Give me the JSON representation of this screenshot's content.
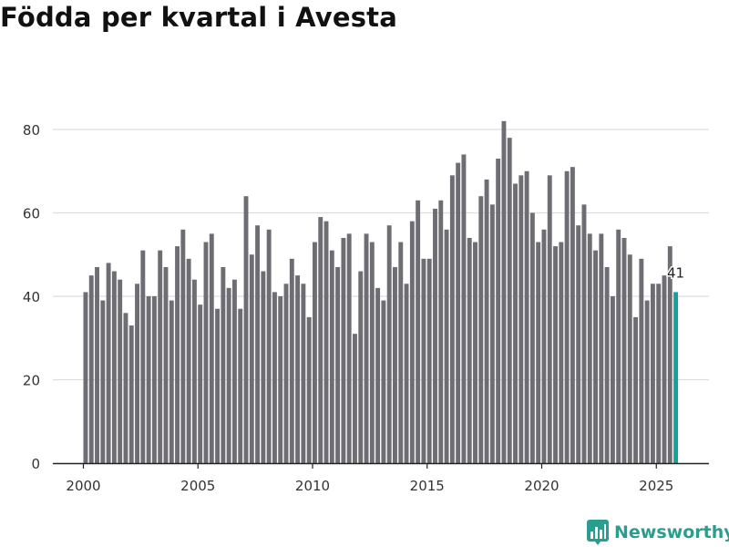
{
  "title": "Födda per kvartal i Avesta",
  "brand": {
    "name": "Newsworthy",
    "color": "#2a9d8f"
  },
  "colors": {
    "bar": "#6e6d74",
    "highlight": "#14a39a",
    "grid": "#dddddd",
    "axis": "#222222",
    "text": "#333333"
  },
  "chart_data": {
    "type": "bar",
    "title": "Födda per kvartal i Avesta",
    "xlabel": "",
    "ylabel": "",
    "ylim": [
      0,
      80
    ],
    "yticks": [
      0,
      20,
      40,
      60,
      80
    ],
    "xticks": [
      "2000",
      "2005",
      "2010",
      "2015",
      "2020",
      "2025"
    ],
    "start_year": 2000,
    "periods_per_year": 4,
    "grid": true,
    "last_value_label": "41",
    "values": [
      41,
      45,
      47,
      39,
      48,
      46,
      44,
      36,
      33,
      43,
      51,
      40,
      40,
      51,
      47,
      39,
      52,
      56,
      49,
      44,
      38,
      53,
      55,
      37,
      47,
      42,
      44,
      37,
      64,
      50,
      57,
      46,
      56,
      41,
      40,
      43,
      49,
      45,
      43,
      35,
      53,
      59,
      58,
      51,
      47,
      54,
      55,
      31,
      46,
      55,
      53,
      42,
      39,
      57,
      47,
      53,
      43,
      58,
      63,
      49,
      49,
      61,
      63,
      56,
      69,
      72,
      74,
      54,
      53,
      64,
      68,
      62,
      73,
      82,
      78,
      67,
      69,
      70,
      60,
      53,
      56,
      69,
      52,
      53,
      70,
      71,
      57,
      62,
      55,
      51,
      55,
      47,
      40,
      56,
      54,
      50,
      35,
      49,
      39,
      43,
      43,
      45,
      52,
      41
    ]
  }
}
